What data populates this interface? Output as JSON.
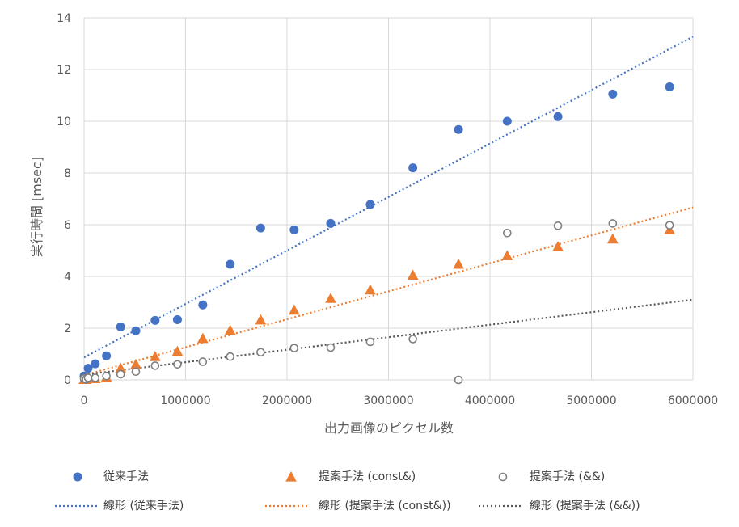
{
  "colors": {
    "series1": "#4472C4",
    "series2": "#ED7D31",
    "series3_stroke": "#7F7F7F",
    "trend3": "#595959",
    "grid": "#D9D9D9"
  },
  "chart_data": {
    "type": "scatter",
    "xlabel": "出力画像のピクセル数",
    "ylabel": "実行時間 [msec]",
    "xlim": [
      0,
      6000000
    ],
    "ylim": [
      0,
      14
    ],
    "x_ticks": [
      0,
      1000000,
      2000000,
      3000000,
      4000000,
      5000000,
      6000000
    ],
    "y_ticks": [
      0,
      2,
      4,
      6,
      8,
      10,
      12,
      14
    ],
    "grid": true,
    "legend_position": "bottom",
    "series": [
      {
        "name": "従来手法",
        "marker": "filled-circle",
        "color": "#4472C4",
        "points": [
          [
            0,
            0.15
          ],
          [
            20000,
            0.05
          ],
          [
            40000,
            0.45
          ],
          [
            110000,
            0.62
          ],
          [
            220000,
            0.93
          ],
          [
            360000,
            2.05
          ],
          [
            510000,
            1.9
          ],
          [
            700000,
            2.3
          ],
          [
            920000,
            2.33
          ],
          [
            1170000,
            2.9
          ],
          [
            1440000,
            4.47
          ],
          [
            1740000,
            5.87
          ],
          [
            2070000,
            5.8
          ],
          [
            2430000,
            6.05
          ],
          [
            2820000,
            6.78
          ],
          [
            3240000,
            8.2
          ],
          [
            3690000,
            9.68
          ],
          [
            4170000,
            10.0
          ],
          [
            4670000,
            10.18
          ],
          [
            5210000,
            11.05
          ],
          [
            5770000,
            11.33
          ]
        ]
      },
      {
        "name": "提案手法 (const&)",
        "marker": "triangle",
        "color": "#ED7D31",
        "points": [
          [
            0,
            0.02
          ],
          [
            20000,
            0.02
          ],
          [
            40000,
            0.05
          ],
          [
            110000,
            0.05
          ],
          [
            220000,
            0.1
          ],
          [
            360000,
            0.45
          ],
          [
            510000,
            0.6
          ],
          [
            700000,
            0.9
          ],
          [
            920000,
            1.1
          ],
          [
            1170000,
            1.6
          ],
          [
            1440000,
            1.92
          ],
          [
            1740000,
            2.32
          ],
          [
            2070000,
            2.7
          ],
          [
            2430000,
            3.15
          ],
          [
            2820000,
            3.48
          ],
          [
            3240000,
            4.05
          ],
          [
            3690000,
            4.47
          ],
          [
            4170000,
            4.8
          ],
          [
            4670000,
            5.15
          ],
          [
            5210000,
            5.45
          ],
          [
            5770000,
            5.8
          ]
        ]
      },
      {
        "name": "提案手法 (&&)",
        "marker": "open-circle",
        "color": "#7F7F7F",
        "points": [
          [
            0,
            0.05
          ],
          [
            20000,
            0.02
          ],
          [
            40000,
            0.08
          ],
          [
            110000,
            0.08
          ],
          [
            220000,
            0.15
          ],
          [
            360000,
            0.22
          ],
          [
            510000,
            0.32
          ],
          [
            700000,
            0.55
          ],
          [
            920000,
            0.6
          ],
          [
            1170000,
            0.7
          ],
          [
            1440000,
            0.9
          ],
          [
            1740000,
            1.07
          ],
          [
            2070000,
            1.23
          ],
          [
            2430000,
            1.25
          ],
          [
            2820000,
            1.47
          ],
          [
            3240000,
            1.58
          ],
          [
            3690000,
            0.0
          ],
          [
            4170000,
            5.68
          ],
          [
            4670000,
            5.96
          ],
          [
            5210000,
            6.05
          ],
          [
            5770000,
            5.98
          ]
        ]
      }
    ],
    "trendlines": [
      {
        "name": "線形 (従来手法)",
        "color": "#4472C4",
        "start": [
          0,
          0.87
        ],
        "end": [
          6000000,
          13.27
        ]
      },
      {
        "name": "線形 (提案手法 (const&))",
        "color": "#ED7D31",
        "start": [
          0,
          0.18
        ],
        "end": [
          6000000,
          6.67
        ]
      },
      {
        "name": "線形 (提案手法 (&&))",
        "color": "#595959",
        "start": [
          0,
          0.2
        ],
        "end": [
          6000000,
          3.1
        ]
      }
    ]
  }
}
